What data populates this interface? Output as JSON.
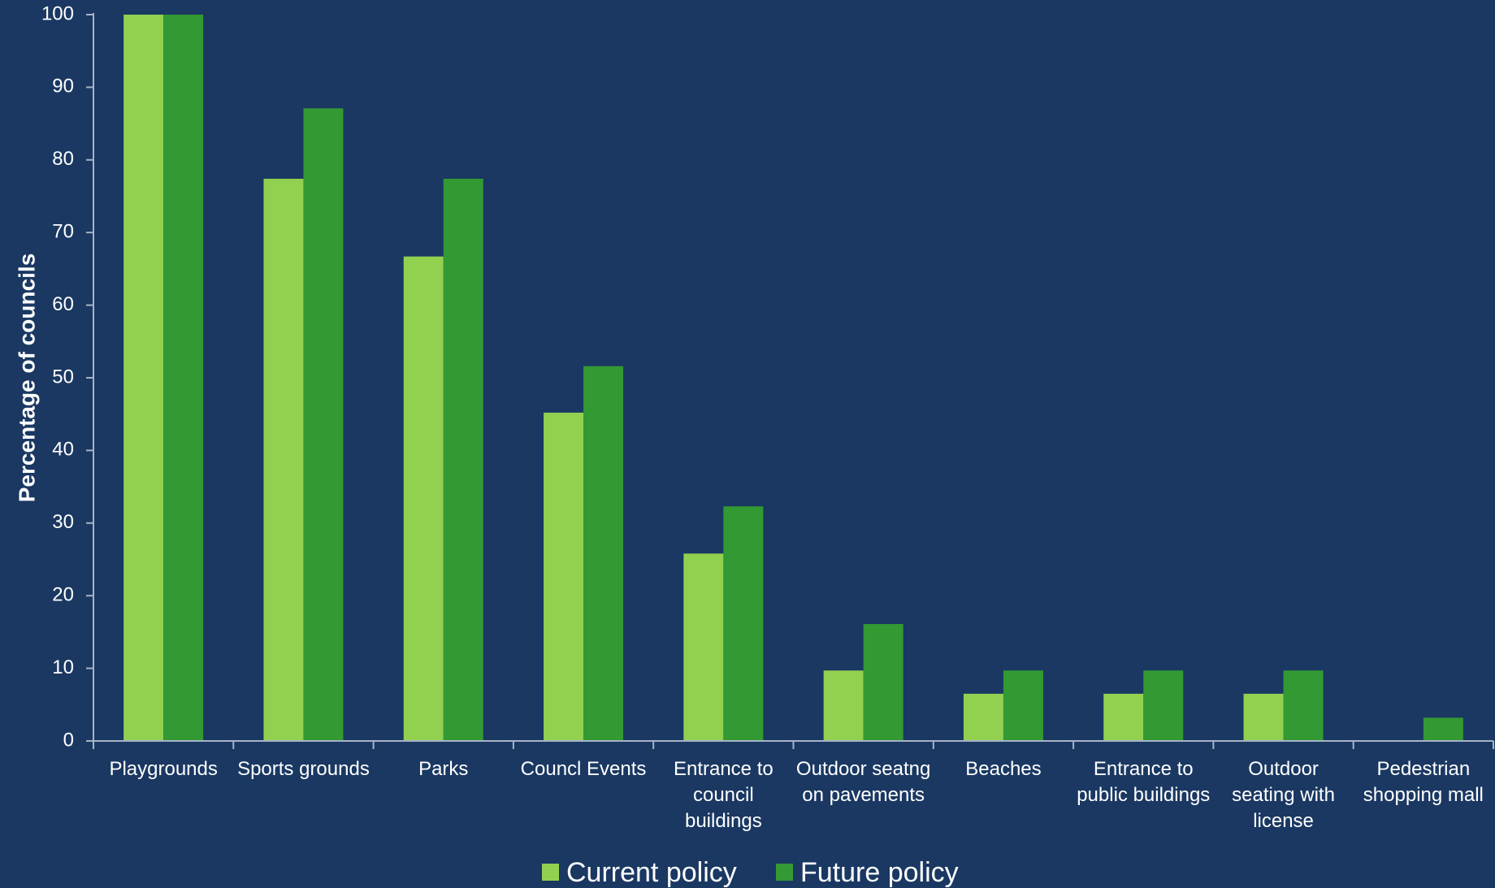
{
  "chart_data": {
    "type": "bar",
    "title": "",
    "xlabel": "",
    "ylabel": "Percentage of councils",
    "ylim": [
      0,
      100
    ],
    "yticks": [
      0,
      10,
      20,
      30,
      40,
      50,
      60,
      70,
      80,
      90,
      100
    ],
    "grid": false,
    "legend_position": "bottom",
    "categories": [
      [
        "Playgrounds"
      ],
      [
        "Sports grounds"
      ],
      [
        "Parks"
      ],
      [
        "Councl Events"
      ],
      [
        "Entrance to",
        "council",
        "buildings"
      ],
      [
        "Outdoor seatng",
        "on pavements"
      ],
      [
        "Beaches"
      ],
      [
        "Entrance to",
        "public buildings"
      ],
      [
        "Outdoor",
        "seating with",
        "license"
      ],
      [
        "Pedestrian",
        "shopping mall"
      ]
    ],
    "series": [
      {
        "name": "Current policy",
        "color": "#92d050",
        "values": [
          100,
          77.4,
          66.7,
          45.2,
          25.8,
          9.7,
          6.5,
          6.5,
          6.5,
          0
        ]
      },
      {
        "name": "Future policy",
        "color": "#339933",
        "values": [
          100,
          87.1,
          77.4,
          51.6,
          32.3,
          16.1,
          9.7,
          9.7,
          9.7,
          3.2
        ]
      }
    ],
    "axis_color": "#a6b4c6",
    "background_color": "#1a3862"
  }
}
